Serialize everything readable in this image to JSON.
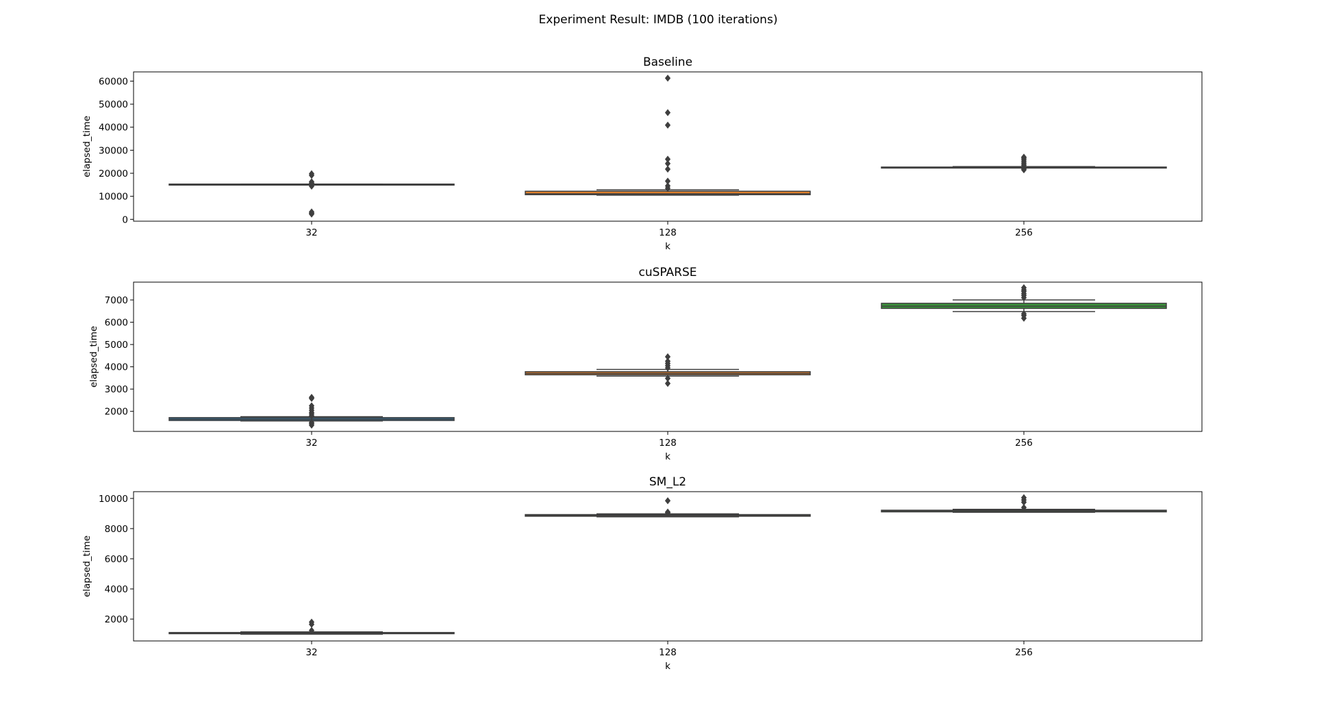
{
  "figure": {
    "title": "Experiment Result: IMDB (100 iterations)"
  },
  "chart_data": [
    {
      "type": "box",
      "title": "Baseline",
      "xlabel": "k",
      "ylabel": "elapsed_time",
      "categories": [
        "32",
        "128",
        "256"
      ],
      "ylim": [
        -800,
        64000
      ],
      "yticks": [
        0,
        10000,
        20000,
        30000,
        40000,
        50000,
        60000
      ],
      "grid": false,
      "boxes": [
        {
          "category": "32",
          "color": "#3274a1",
          "whisker_low": 15000,
          "q1": 15000,
          "median": 15200,
          "q3": 15300,
          "whisker_high": 15300,
          "outliers": [
            2300,
            2700,
            3200,
            14400,
            15700,
            16300,
            19100,
            19800
          ]
        },
        {
          "category": "128",
          "color": "#e1812c",
          "whisker_low": 10500,
          "q1": 10700,
          "median": 11100,
          "q3": 12200,
          "whisker_high": 12800,
          "outliers": [
            13500,
            14500,
            16600,
            21800,
            24200,
            26100,
            40900,
            46300,
            61300
          ]
        },
        {
          "category": "256",
          "color": "#3a923a",
          "whisker_low": 22400,
          "q1": 22550,
          "median": 22600,
          "q3": 22700,
          "whisker_high": 22900,
          "outliers": [
            21500,
            22000,
            23500,
            24200,
            25000,
            25800,
            26500,
            27000
          ]
        }
      ]
    },
    {
      "type": "box",
      "title": "cuSPARSE",
      "xlabel": "k",
      "ylabel": "elapsed_time",
      "categories": [
        "32",
        "128",
        "256"
      ],
      "ylim": [
        1100,
        7800
      ],
      "yticks": [
        2000,
        3000,
        4000,
        5000,
        6000,
        7000
      ],
      "grid": false,
      "boxes": [
        {
          "category": "32",
          "color": "#3274a1",
          "whisker_low": 1570,
          "q1": 1590,
          "median": 1650,
          "q3": 1720,
          "whisker_high": 1760,
          "outliers": [
            1380,
            1450,
            1500,
            1800,
            1880,
            1950,
            2050,
            2150,
            2250,
            2580,
            2630
          ]
        },
        {
          "category": "128",
          "color": "#e1812c",
          "whisker_low": 3580,
          "q1": 3640,
          "median": 3700,
          "q3": 3780,
          "whisker_high": 3880,
          "outliers": [
            3250,
            3480,
            3950,
            4050,
            4150,
            4250,
            4450
          ]
        },
        {
          "category": "256",
          "color": "#3a923a",
          "whisker_low": 6480,
          "q1": 6620,
          "median": 6720,
          "q3": 6850,
          "whisker_high": 7000,
          "outliers": [
            6180,
            6300,
            6380,
            7100,
            7200,
            7280,
            7380,
            7450,
            7550
          ]
        }
      ]
    },
    {
      "type": "box",
      "title": "SM_L2",
      "xlabel": "k",
      "ylabel": "elapsed_time",
      "categories": [
        "32",
        "128",
        "256"
      ],
      "ylim": [
        550,
        10450
      ],
      "yticks": [
        2000,
        4000,
        6000,
        8000,
        10000
      ],
      "grid": false,
      "boxes": [
        {
          "category": "32",
          "color": "#3274a1",
          "whisker_low": 1000,
          "q1": 1030,
          "median": 1070,
          "q3": 1110,
          "whisker_high": 1150,
          "outliers": [
            1250,
            1650,
            1800
          ]
        },
        {
          "category": "128",
          "color": "#e1812c",
          "whisker_low": 8780,
          "q1": 8820,
          "median": 8880,
          "q3": 8930,
          "whisker_high": 8980,
          "outliers": [
            9050,
            9100,
            9850
          ]
        },
        {
          "category": "256",
          "color": "#3a923a",
          "whisker_low": 9080,
          "q1": 9110,
          "median": 9170,
          "q3": 9220,
          "whisker_high": 9280,
          "outliers": [
            9400,
            9750,
            9900,
            10050
          ]
        }
      ]
    }
  ]
}
